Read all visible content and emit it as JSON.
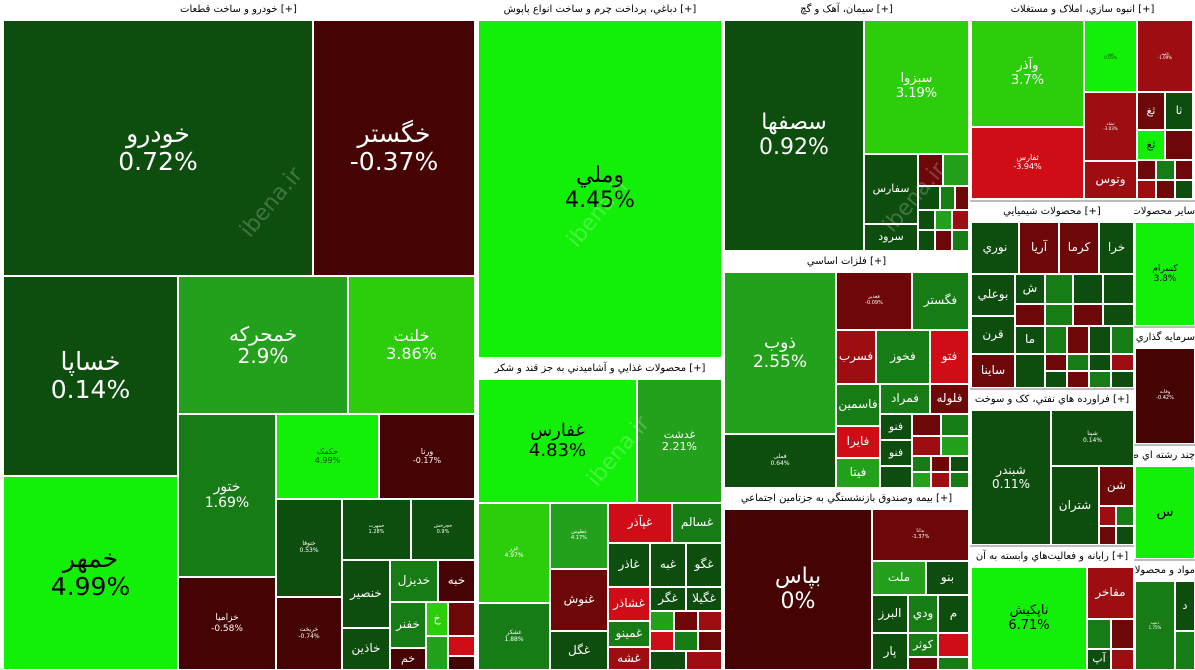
{
  "sections": {
    "auto": "خودرو و ساخت قطعات [+]",
    "leather": "دباغي، پرداخت چرم و ساخت انواع پاپوش [+]",
    "cement": "سيمان، آهک و گچ [+]",
    "realestate": "انبوه سازي، املاک و مستغلات [+]",
    "chemical": "محصولات شيميايي [+]",
    "nonmetal": "ساير محصولات کاني غيرفلزي [+]",
    "investment": "سرمايه گذاري ها [+] به نهاده",
    "food": "محصولات غذايي و آشاميدني به جز قند و شکر [+]",
    "metals": "فلزات اساسي [+]",
    "oil": "فراورده هاي نفتي، کک و سوخت [+]",
    "industry": "چند رشته اي صنعتي [+]",
    "insurance": "بيمه وصندوق بازنشستگي به جزتامين اجتماعي [+]",
    "computer": "رايانه و فعاليت‌هاي وابسته به آن [+]",
    "pharma": "مواد و محصولات دارويي [+]"
  },
  "tiles": {
    "khodro": {
      "name": "خودرو",
      "pct": "0.72%"
    },
    "khgostar": {
      "name": "خگستر",
      "pct": "-0.37%"
    },
    "khsapa": {
      "name": "خساپا",
      "pct": "0.14%"
    },
    "khamrakeh": {
      "name": "خمحرکه",
      "pct": "2.9%"
    },
    "khlent": {
      "name": "خلنت",
      "pct": "3.86%"
    },
    "khamhar": {
      "name": "خمهر",
      "pct": "4.99%"
    },
    "khtor": {
      "name": "ختور",
      "pct": "1.69%"
    },
    "khakmak": {
      "name": "حکمک",
      "pct": "4.99%"
    },
    "vernaa": {
      "name": "ورنا",
      "pct": "-0.17%"
    },
    "khtoka": {
      "name": "ختوقا",
      "pct": "0.53%"
    },
    "khzamia": {
      "name": "خزامیا",
      "pct": "-0.58%"
    },
    "khrikt": {
      "name": "خریخت",
      "pct": "-0.74%"
    },
    "khmoheret": {
      "name": "خمهرت",
      "pct": "1.28%"
    },
    "khchark": {
      "name": "خچرخش",
      "pct": "0.9%"
    },
    "khdizl": {
      "name": "خدیزل"
    },
    "khbahman": {
      "name": "خبه"
    },
    "khnasir": {
      "name": "خنصير"
    },
    "khafnar": {
      "name": "خفنر"
    },
    "khkh": {
      "name": "خ"
    },
    "khzin": {
      "name": "خاذين"
    },
    "kham": {
      "name": "خم"
    },
    "vmeli": {
      "name": "وملي",
      "pct": "4.45%"
    },
    "ghfars": {
      "name": "غفارس",
      "pct": "4.83%"
    },
    "ghdasht": {
      "name": "غدشت",
      "pct": "2.21%"
    },
    "ghzar": {
      "name": "غزر",
      "pct": "4.97%"
    },
    "ghtoos": {
      "name": "غطوس",
      "pct": "4.17%"
    },
    "ghnoosh": {
      "name": "غنوش"
    },
    "ghgol": {
      "name": "غگل"
    },
    "ghsalem": {
      "name": "غسالم"
    },
    "ghiazar": {
      "name": "غپآذر"
    },
    "ghaza": {
      "name": "غاذر"
    },
    "ghbe": {
      "name": "غبه"
    },
    "ghgo": {
      "name": "غگو"
    },
    "ghshazar": {
      "name": "غشاذر"
    },
    "ghgor": {
      "name": "غگر"
    },
    "ghglia": {
      "name": "غگيلا"
    },
    "ghmino": {
      "name": "غمينو"
    },
    "ghshe": {
      "name": "غشه"
    },
    "ghshhkar": {
      "name": "غشکر",
      "pct": "1.88%"
    },
    "sfaha": {
      "name": "سصفها",
      "pct": "0.92%"
    },
    "sabzva": {
      "name": "سبزوا",
      "pct": "3.19%"
    },
    "sfars": {
      "name": "سفارس"
    },
    "srood": {
      "name": "سرود"
    },
    "zob": {
      "name": "ذوب",
      "pct": "2.55%"
    },
    "fghadir": {
      "name": "فغدیر",
      "pct": "-0.09%"
    },
    "fgostar": {
      "name": "فگستر"
    },
    "fsorb": {
      "name": "فسرب"
    },
    "fkhooz": {
      "name": "فخوز"
    },
    "ftoo": {
      "name": "فتو"
    },
    "fmrad": {
      "name": "فمراد"
    },
    "folve": {
      "name": "فلوله"
    },
    "fasmin": {
      "name": "فاسمين"
    },
    "faira": {
      "name": "فايرا"
    },
    "fnoo": {
      "name": "فنو"
    },
    "fnoo2": {
      "name": "فنو"
    },
    "fitah": {
      "name": "فيتا"
    },
    "fkhaz": {
      "name": "فملی",
      "pct": "0.64%"
    },
    "bpas": {
      "name": "بپاس",
      "pct": "0%"
    },
    "bdana": {
      "name": "بدانا",
      "pct": "-1.37%"
    },
    "melt": {
      "name": "ملت"
    },
    "bno": {
      "name": "بنو"
    },
    "albrz": {
      "name": "البرز"
    },
    "vdey": {
      "name": "ودي"
    },
    "vm": {
      "name": "م"
    },
    "kowsar": {
      "name": "کوثر"
    },
    "kpar": {
      "name": "پار"
    },
    "vazar": {
      "name": "وآذر",
      "pct": "3.7%"
    },
    "thfars": {
      "name": "ثفارس",
      "pct": "-3.94%"
    },
    "vtoos": {
      "name": "وتوس"
    },
    "thaa": {
      "name": "ثا"
    },
    "thtab": {
      "name": "ثغ"
    },
    "thgh": {
      "name": "ثغ"
    },
    "thnori": {
      "name": "ثنور",
      "pct": "0.05%"
    },
    "thoomid": {
      "name": "ثامید",
      "pct": "-1.09%"
    },
    "thshah": {
      "name": "ثشاه",
      "pct": "-3.03%"
    },
    "noori": {
      "name": "نوري"
    },
    "arya": {
      "name": "آريا"
    },
    "karma": {
      "name": "کرما"
    },
    "khraa": {
      "name": "خرا"
    },
    "booali": {
      "name": "بوعلي"
    },
    "shsh": {
      "name": "ش"
    },
    "qarn": {
      "name": "قرن"
    },
    "ma": {
      "name": "ما"
    },
    "saina": {
      "name": "ساينا"
    },
    "kesram": {
      "name": "کسرام",
      "pct": "3.8%"
    },
    "vafabe": {
      "name": "وفابه",
      "pct": "-0.42%"
    },
    "shbandar": {
      "name": "شبندر",
      "pct": "0.11%"
    },
    "shpna": {
      "name": "شپنا",
      "pct": "0.14%"
    },
    "shtran": {
      "name": "شتران"
    },
    "shn": {
      "name": "شن"
    },
    "sh": {
      "name": "س"
    },
    "taykish": {
      "name": "تاپکيش",
      "pct": "6.71%"
    },
    "mfakhr": {
      "name": "مفاخر"
    },
    "mp": {
      "name": "آپ"
    },
    "dd": {
      "name": "د"
    },
    "daroo": {
      "name": "دعبید",
      "pct": "1.75%"
    }
  },
  "watermark": "ibena.ir"
}
